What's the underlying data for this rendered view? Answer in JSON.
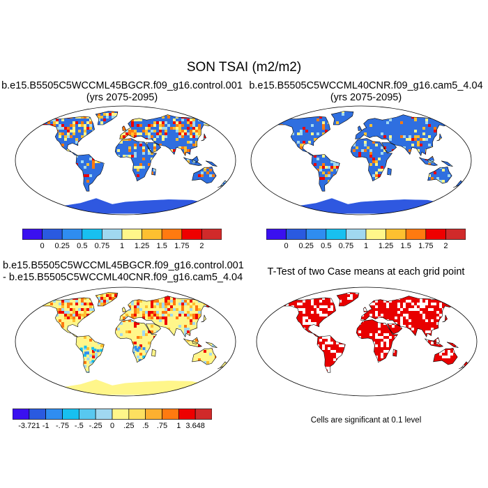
{
  "figure": {
    "title": "SON TSAI (m2/m2)"
  },
  "panels": [
    {
      "id": "case1",
      "title_line1": "b.e15.B5505C5WCCML45BGCR.f09_g16.control.001",
      "title_line2": "(yrs 2075-2095)"
    },
    {
      "id": "case2",
      "title_line1": "b.e15.B5505C5WCCML40CNR.f09_g16.cam5_4.04",
      "title_line2": "(yrs 2075-2095)"
    },
    {
      "id": "difference",
      "title_line1": "b.e15.B5505C5WCCML45BGCR.f09_g16.control.001",
      "title_line2": "- b.e15.B5505C5WCCML40CNR.f09_g16.cam5_4.04"
    },
    {
      "id": "ttest",
      "title_line1": "T-Test of two Case means at each grid point",
      "footnote": "Cells are significant at 0.1 level"
    }
  ],
  "colorbars": {
    "absolute": {
      "colors": [
        "#3a10f0",
        "#2a5ae0",
        "#2f8df0",
        "#18c0f0",
        "#a0d8f0",
        "#fff68a",
        "#fdc030",
        "#ff7a10",
        "#ee0000",
        "#d02a2a"
      ],
      "labels": [
        "0",
        "0.25",
        "0.5",
        "0.75",
        "1",
        "1.25",
        "1.5",
        "1.75",
        "2"
      ]
    },
    "difference": {
      "colors": [
        "#3a10f0",
        "#2a5ae0",
        "#2f8df0",
        "#18c0f0",
        "#58c8f0",
        "#a0d8f0",
        "#fff68a",
        "#fde060",
        "#fdb030",
        "#ff7a10",
        "#ee0000",
        "#d02a2a"
      ],
      "labels": [
        "-3.721",
        "-1",
        "-.75",
        "-.5",
        "-.25",
        "0",
        ".25",
        ".5",
        ".75",
        "1",
        "3.648"
      ]
    }
  },
  "map_colors": {
    "land_case1": "#2f6fe0",
    "land_case2": "#2f6fe0",
    "land_diff": "#fff68a",
    "significant": "#e80000",
    "hot": [
      "#fdc030",
      "#ff7a10",
      "#ee0000",
      "#a0d8f0",
      "#fff68a"
    ],
    "cold_diff": [
      "#2f8df0",
      "#18c0f0",
      "#a0d8f0"
    ],
    "antarctica_case": "#2f58e0",
    "antarctica_diff": "#fff68a"
  }
}
